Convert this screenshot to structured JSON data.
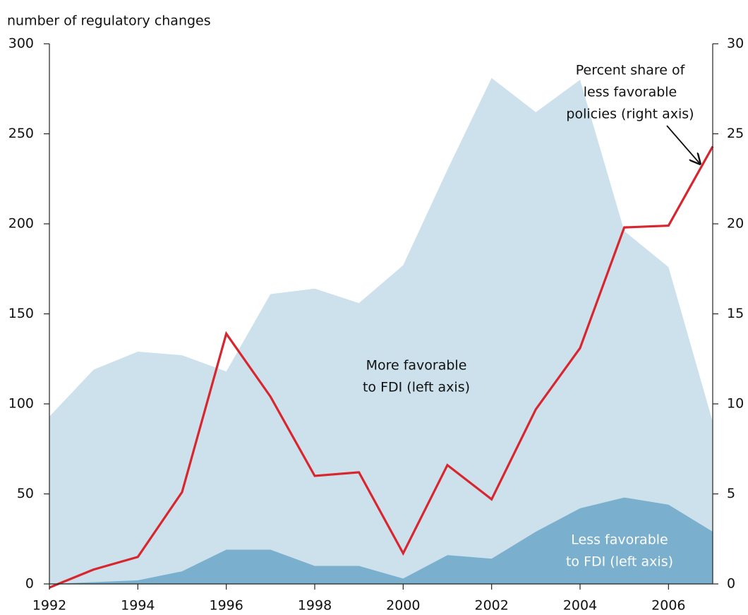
{
  "chart_data": {
    "type": "area_line",
    "y_axis_title": "number of regulatory changes",
    "x": [
      1992,
      1993,
      1994,
      1995,
      1996,
      1997,
      1998,
      1999,
      2000,
      2001,
      2002,
      2003,
      2004,
      2005,
      2006,
      2007
    ],
    "xlim": [
      1992,
      2007
    ],
    "xticks": [
      1992,
      1994,
      1996,
      1998,
      2000,
      2002,
      2004,
      2006
    ],
    "ylim": [
      0,
      300
    ],
    "yticks": [
      0,
      50,
      100,
      150,
      200,
      250,
      300
    ],
    "y2lim": [
      0,
      30
    ],
    "y2ticks": [
      0,
      5,
      10,
      15,
      20,
      25,
      30
    ],
    "grid": false,
    "series": [
      {
        "name": "More favorable to FDI (left axis)",
        "kind": "area",
        "color": "#cde1ec",
        "values": [
          93,
          119,
          129,
          127,
          118,
          161,
          164,
          156,
          177,
          230,
          281,
          262,
          280,
          196,
          176,
          90
        ]
      },
      {
        "name": "Less favorable to FDI (left axis)",
        "kind": "area",
        "color": "#7ab0cd",
        "values": [
          0,
          1,
          2,
          7,
          19,
          19,
          10,
          10,
          3,
          16,
          14,
          29,
          42,
          48,
          44,
          29
        ]
      },
      {
        "name": "Percent share of less favorable policies (right axis)",
        "kind": "line",
        "axis": "y2",
        "color": "#d8262e",
        "values": [
          -0.2,
          0.8,
          1.5,
          5.1,
          13.9,
          10.4,
          6.0,
          6.2,
          1.7,
          6.6,
          4.7,
          9.7,
          13.1,
          19.8,
          19.9,
          24.3
        ]
      }
    ],
    "annotations": [
      {
        "lines": [
          "More favorable",
          "to FDI (left axis)"
        ]
      },
      {
        "lines": [
          "Less favorable",
          "to FDI (left axis)"
        ]
      },
      {
        "lines": [
          "Percent share of",
          "less favorable",
          "policies (right axis)"
        ]
      }
    ]
  }
}
